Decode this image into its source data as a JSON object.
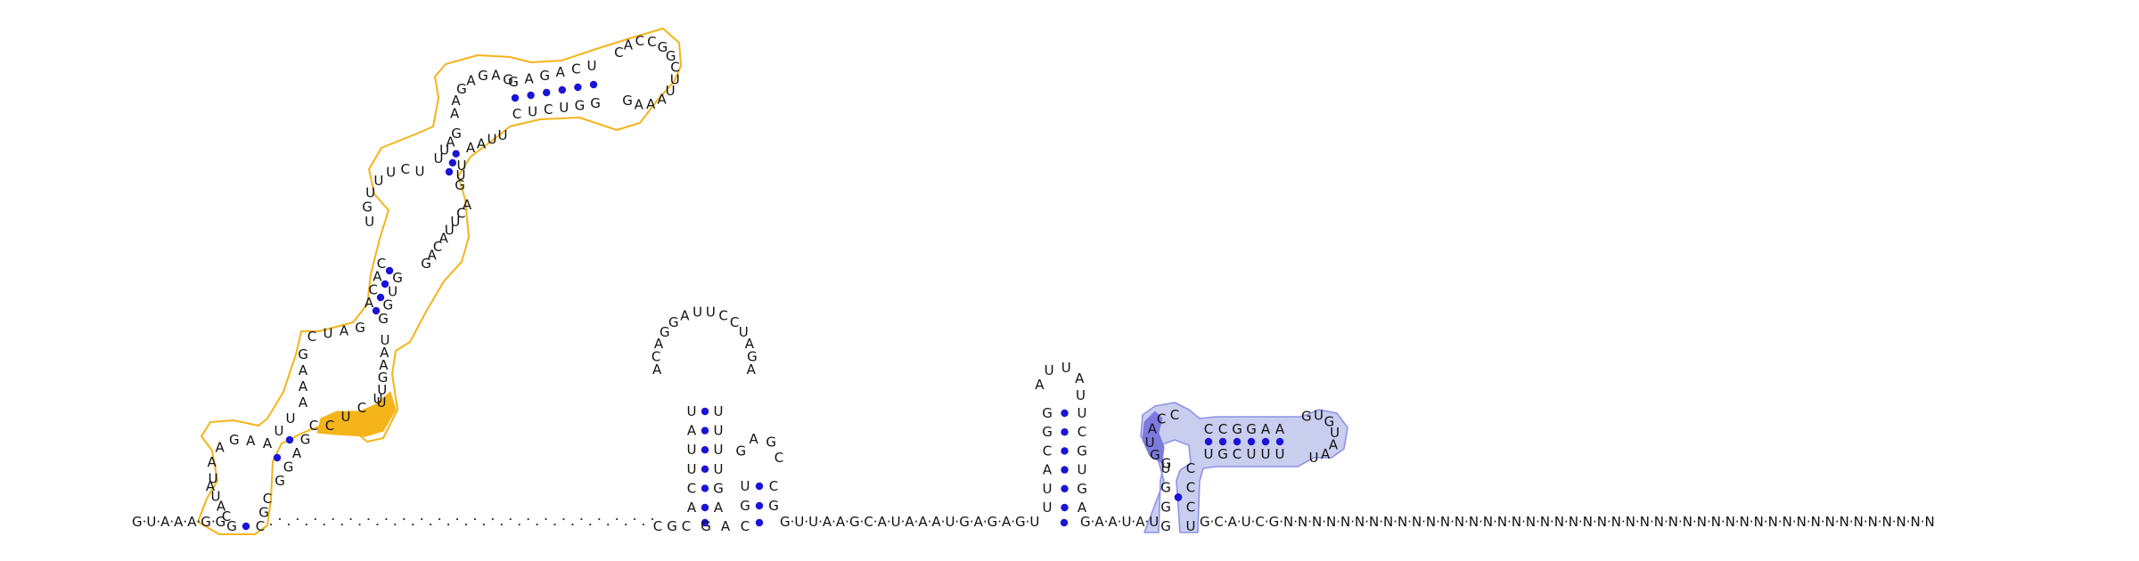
{
  "diagram": {
    "type": "rna-secondary-structure",
    "colors": {
      "base_pair": "#1a14d6",
      "orange_outline": "#f4b41a",
      "orange_fill": "#f4b41a",
      "blue_outline": "#8d94e6",
      "blue_fill": "#c9ceef",
      "blue_dark_fill": "#7d7ade",
      "text": "#111111"
    },
    "backbone_start": "G·U·A·A·A·G·G",
    "orange_hairpin": {
      "stem1_left": [
        "G",
        "C",
        "A",
        "U",
        "A"
      ],
      "loop1": [
        "U",
        "A",
        "A",
        "G",
        "A"
      ],
      "stem2_left": [
        "A",
        "U",
        "U"
      ],
      "int1_left": [
        "A",
        "A",
        "A",
        "G"
      ],
      "stem3_left": [
        "C",
        "U",
        "A",
        "G"
      ],
      "stem4_left": [
        "A",
        "C",
        "A",
        "C"
      ],
      "int2_left": [
        "U",
        "G",
        "U",
        "U",
        "U",
        "C",
        "U"
      ],
      "stem5_left": [
        "U",
        "U",
        "A",
        "G"
      ],
      "int3_left": [
        "A",
        "A",
        "G",
        "A",
        "G",
        "A",
        "G"
      ],
      "stem6_top": [
        "G",
        "A",
        "G",
        "A",
        "C",
        "U"
      ],
      "hairpin_loop": [
        "C",
        "A",
        "C",
        "C",
        "G",
        "G",
        "C",
        "U",
        "U",
        "A",
        "A",
        "A",
        "G"
      ],
      "stem6_bottom": [
        "G",
        "G",
        "U",
        "C",
        "U",
        "C"
      ],
      "int3_right": [
        "U",
        "U",
        "A",
        "A"
      ],
      "stem5_right": [
        "U",
        "U",
        "G"
      ],
      "int2_right": [
        "A",
        "C",
        "U",
        "U",
        "A",
        "C",
        "A",
        "G"
      ],
      "stem4_right": [
        "G",
        "U",
        "G",
        "G"
      ],
      "int1_right": [
        "U",
        "A",
        "A",
        "G",
        "U",
        "U"
      ],
      "highlight": [
        "U",
        "C",
        "U",
        "C"
      ],
      "stem3_right": [
        "C",
        "G",
        "A",
        "G",
        "G"
      ],
      "stem1_right": [
        "C",
        "G",
        "C"
      ]
    },
    "dotted_linker_count": 44,
    "hairpin2": {
      "left": [
        "C",
        "G",
        "C"
      ],
      "stem_left": [
        "A",
        "C",
        "U",
        "U",
        "A",
        "U"
      ],
      "loop": [
        "A",
        "C",
        "A",
        "G",
        "G",
        "A",
        "U",
        "U",
        "C",
        "C",
        "U",
        "A",
        "G",
        "A"
      ],
      "stem_right": [
        "U",
        "U",
        "U",
        "U",
        "G",
        "A"
      ]
    },
    "hairpin3": {
      "left": [
        "G",
        "A",
        "C"
      ],
      "stem_left": [
        "G",
        "U"
      ],
      "loop": [
        "G",
        "A",
        "G",
        "C"
      ],
      "stem_right": [
        "C",
        "G"
      ]
    },
    "linker_mid": "G·U·U·A·A·G·C·A·U·A·A·A·U·G·A·G·A·G·U",
    "hairpin4": {
      "stem_left": [
        "U",
        "U",
        "A",
        "C",
        "G",
        "G"
      ],
      "loop": [
        "A",
        "U",
        "U",
        "A",
        "U"
      ],
      "stem_right": [
        "U",
        "C",
        "G",
        "U",
        "G",
        "A"
      ]
    },
    "linker_pre_blue": "G·A·A·U·A·U",
    "blue_structure": {
      "stem_left": [
        "G",
        "G",
        "G",
        "U"
      ],
      "loop_left": [
        "G",
        "G",
        "U",
        "A",
        "C",
        "C"
      ],
      "stem_top": [
        "C",
        "C",
        "G",
        "G",
        "A",
        "A"
      ],
      "hairpin_loop": [
        "G",
        "U",
        "G",
        "U",
        "A",
        "A",
        "U"
      ],
      "stem_bottom": [
        "U",
        "U",
        "U",
        "C",
        "G",
        "U"
      ],
      "stem_right": [
        "C",
        "C",
        "C",
        "U"
      ]
    },
    "backbone_end": "G·C·A·U·C·G·N·N·N·N·N·N·N·N·N·N·N·N·N·N·N·N·N·N·N·N·N·N·N·N·N·N·N·N·N·N·N·N·N·N·N·N·N·N·N·N·N·N·N·N·N·N"
  }
}
